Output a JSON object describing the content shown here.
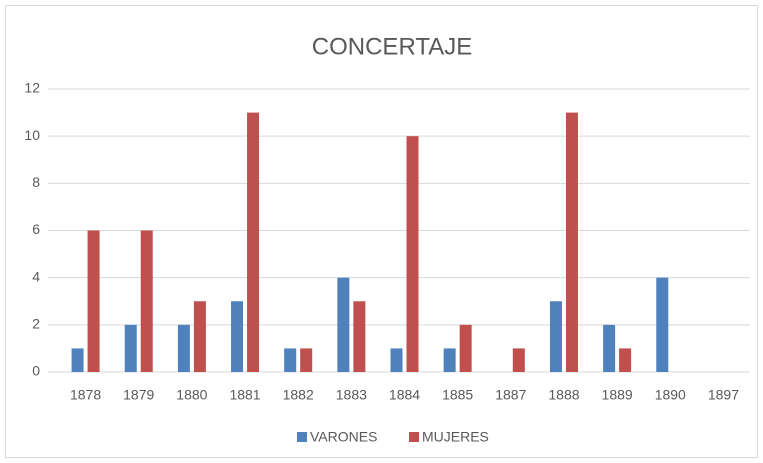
{
  "chart_data": {
    "type": "bar",
    "title": "CONCERTAJE",
    "categories": [
      "1878",
      "1879",
      "1880",
      "1881",
      "1882",
      "1883",
      "1884",
      "1885",
      "1887",
      "1888",
      "1889",
      "1890",
      "1897"
    ],
    "series": [
      {
        "name": "VARONES",
        "color": "#4f81bd",
        "values": [
          1,
          2,
          2,
          3,
          1,
          4,
          1,
          1,
          0,
          3,
          2,
          4,
          0
        ]
      },
      {
        "name": "MUJERES",
        "color": "#c0504d",
        "values": [
          6,
          6,
          3,
          11,
          1,
          3,
          10,
          2,
          1,
          11,
          1,
          0,
          0
        ]
      }
    ],
    "ylim": [
      0,
      12
    ],
    "yticks": [
      0,
      2,
      4,
      6,
      8,
      10,
      12
    ],
    "grid": true,
    "legend": "bottom"
  }
}
